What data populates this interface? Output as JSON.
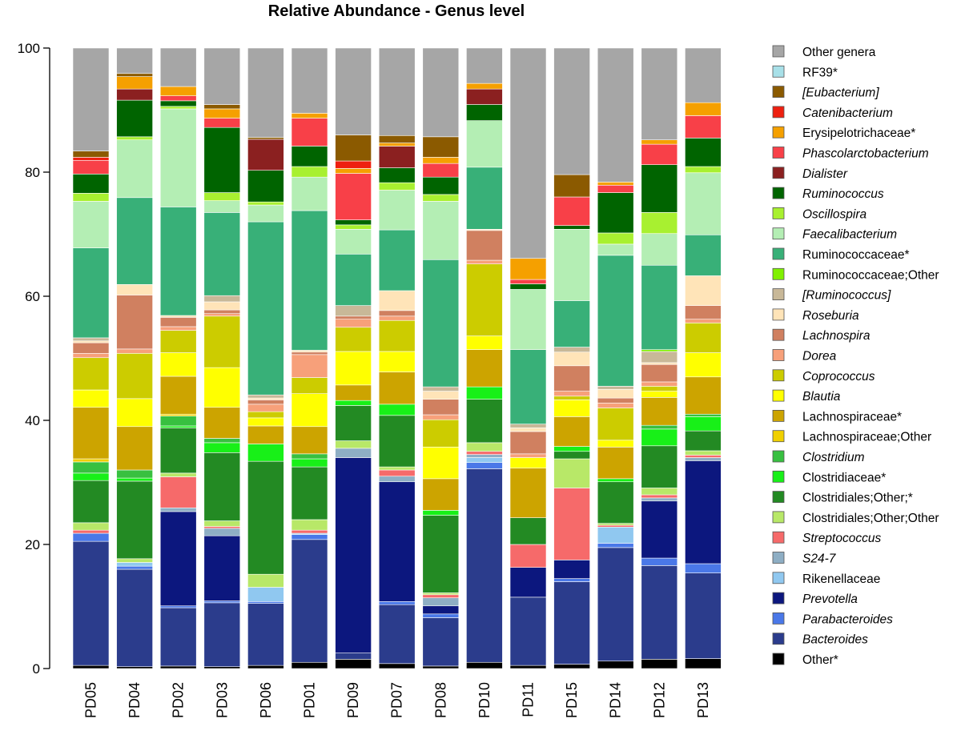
{
  "chart_data": {
    "type": "bar",
    "stacked": true,
    "title": "Relative Abundance - Genus level",
    "xlabel": "",
    "ylabel": "",
    "ylim": [
      0,
      100
    ],
    "yticks": [
      "0",
      "20",
      "40",
      "60",
      "80",
      "100"
    ],
    "legend_position": "right",
    "categories": [
      "PD05",
      "PD04",
      "PD02",
      "PD03",
      "PD06",
      "PD01",
      "PD09",
      "PD07",
      "PD08",
      "PD10",
      "PD11",
      "PD15",
      "PD14",
      "PD12",
      "PD13"
    ],
    "series": [
      {
        "name": "Other*",
        "italic": false,
        "color": "#000000",
        "values": [
          0.5,
          0.3,
          0.4,
          0.3,
          0.5,
          1.0,
          1.5,
          0.8,
          0.4,
          1.0,
          0.5,
          0.7,
          1.2,
          1.5,
          1.6
        ]
      },
      {
        "name": "Bacteroides",
        "italic": true,
        "color": "#2b3c8c",
        "values": [
          20.0,
          15.7,
          9.4,
          10.3,
          10.0,
          19.8,
          1.0,
          9.5,
          7.8,
          31.2,
          11.0,
          13.3,
          18.3,
          15.1,
          13.8
        ]
      },
      {
        "name": "Parabacteroides",
        "italic": true,
        "color": "#4a78e8",
        "values": [
          1.3,
          0.5,
          0.3,
          0.3,
          0.3,
          0.8,
          0.0,
          0.5,
          0.6,
          1.0,
          0.0,
          0.5,
          0.7,
          1.2,
          1.5
        ]
      },
      {
        "name": "Prevotella",
        "italic": true,
        "color": "#0c177e",
        "values": [
          0.0,
          0.0,
          15.2,
          10.5,
          0.0,
          0.0,
          31.5,
          19.3,
          1.3,
          0.0,
          4.8,
          3.0,
          0.0,
          9.2,
          16.6
        ]
      },
      {
        "name": "Rikenellaceae",
        "italic": false,
        "color": "#90c8f0",
        "values": [
          0.0,
          0.6,
          0.0,
          0.0,
          2.3,
          0.2,
          0.0,
          0.0,
          0.0,
          0.8,
          0.0,
          0.0,
          2.6,
          0.0,
          0.0
        ]
      },
      {
        "name": "S24-7",
        "italic": true,
        "color": "#8eaec4",
        "values": [
          0.0,
          0.0,
          0.6,
          1.2,
          0.0,
          0.0,
          1.5,
          0.9,
          1.3,
          0.5,
          0.0,
          0.0,
          0.0,
          0.5,
          0.5
        ]
      },
      {
        "name": "Streptococcus",
        "italic": true,
        "color": "#f66a6a",
        "values": [
          0.5,
          0.0,
          5.0,
          0.3,
          0.0,
          0.5,
          0.0,
          1.0,
          0.5,
          0.5,
          3.7,
          11.6,
          0.3,
          0.5,
          0.4
        ]
      },
      {
        "name": "Clostridiales;Other;Other",
        "italic": false,
        "color": "#b8e868",
        "values": [
          1.2,
          0.6,
          0.6,
          0.9,
          2.1,
          1.7,
          1.2,
          0.5,
          0.3,
          1.4,
          0.0,
          4.7,
          0.3,
          1.1,
          0.7
        ]
      },
      {
        "name": "Clostridiales;Other;*",
        "italic": false,
        "color": "#238a23",
        "values": [
          6.8,
          12.5,
          7.3,
          11.0,
          18.2,
          8.5,
          5.7,
          8.3,
          12.5,
          7.0,
          4.3,
          1.2,
          6.7,
          6.8,
          3.2
        ]
      },
      {
        "name": "Clostridiaceae*",
        "italic": false,
        "color": "#18f018",
        "values": [
          1.2,
          0.5,
          0.3,
          1.6,
          2.8,
          1.3,
          0.8,
          1.8,
          0.8,
          2.0,
          0.0,
          0.8,
          0.5,
          2.7,
          2.3
        ]
      },
      {
        "name": "Clostridium",
        "italic": true,
        "color": "#38c040",
        "values": [
          1.8,
          1.3,
          1.6,
          0.7,
          0.0,
          0.8,
          0.0,
          0.0,
          0.0,
          0.0,
          0.0,
          0.0,
          0.0,
          0.6,
          0.4
        ]
      },
      {
        "name": "Lachnospiraceae;Other",
        "italic": false,
        "color": "#f0d000",
        "values": [
          0.5,
          0.0,
          0.3,
          0.0,
          0.0,
          0.0,
          0.0,
          0.0,
          0.0,
          0.0,
          0.0,
          0.0,
          0.0,
          0.0,
          0.0
        ]
      },
      {
        "name": "Lachnospiraceae*",
        "italic": false,
        "color": "#cca400",
        "values": [
          8.3,
          7.0,
          6.1,
          5.0,
          2.9,
          4.4,
          2.5,
          5.2,
          5.1,
          6.0,
          8.0,
          4.8,
          5.1,
          4.5,
          6.0
        ]
      },
      {
        "name": "Blautia",
        "italic": true,
        "color": "#ffff00",
        "values": [
          2.8,
          4.5,
          3.8,
          6.4,
          1.3,
          5.3,
          5.4,
          3.3,
          5.1,
          2.2,
          1.7,
          2.7,
          1.1,
          1.0,
          3.9
        ]
      },
      {
        "name": "Coprococcus",
        "italic": true,
        "color": "#cccc00",
        "values": [
          5.2,
          7.3,
          3.6,
          8.3,
          1.0,
          2.6,
          3.9,
          5.0,
          4.4,
          11.6,
          0.0,
          0.6,
          5.2,
          0.8,
          4.8
        ]
      },
      {
        "name": "Dorea",
        "italic": true,
        "color": "#f7a07a",
        "values": [
          0.7,
          0.7,
          0.6,
          0.4,
          1.2,
          3.7,
          1.3,
          0.7,
          0.8,
          0.6,
          0.6,
          0.8,
          0.8,
          0.7,
          0.6
        ]
      },
      {
        "name": "Lachnospira",
        "italic": true,
        "color": "#d08060",
        "values": [
          1.7,
          8.7,
          1.5,
          0.6,
          0.7,
          0.4,
          0.5,
          0.9,
          2.5,
          4.8,
          3.6,
          4.1,
          0.8,
          2.8,
          2.2
        ]
      },
      {
        "name": "Roseburia",
        "italic": true,
        "color": "#ffe4b8",
        "values": [
          0.3,
          1.7,
          0.3,
          1.3,
          0.3,
          0.3,
          0.0,
          3.2,
          1.3,
          0.2,
          0.6,
          2.2,
          1.4,
          0.3,
          4.8
        ]
      },
      {
        "name": "[Ruminococcus]",
        "italic": true,
        "color": "#c8b898",
        "values": [
          0.5,
          0.0,
          0.0,
          1.0,
          0.5,
          0.0,
          1.7,
          0.0,
          0.7,
          0.0,
          0.6,
          0.8,
          0.5,
          1.8,
          0.0
        ]
      },
      {
        "name": "Ruminococcaceae;Other",
        "italic": false,
        "color": "#80f000",
        "values": [
          0.0,
          0.0,
          0.0,
          0.0,
          0.0,
          0.0,
          0.0,
          0.0,
          0.0,
          0.0,
          0.0,
          0.0,
          0.0,
          0.3,
          0.0
        ]
      },
      {
        "name": "Ruminococcaceae*",
        "italic": false,
        "color": "#38b078",
        "values": [
          14.5,
          14.0,
          17.5,
          13.4,
          27.9,
          22.5,
          8.3,
          9.8,
          20.5,
          10.0,
          12.0,
          7.5,
          21.1,
          13.6,
          6.6
        ]
      },
      {
        "name": "Faecalibacterium",
        "italic": true,
        "color": "#b4eeb4",
        "values": [
          7.5,
          9.3,
          15.8,
          1.9,
          2.7,
          5.4,
          4.0,
          6.4,
          9.4,
          7.5,
          9.7,
          11.5,
          1.8,
          5.1,
          10.0
        ]
      },
      {
        "name": "Oscillospira",
        "italic": true,
        "color": "#a8f030",
        "values": [
          1.3,
          0.5,
          0.4,
          1.3,
          0.5,
          1.7,
          0.7,
          1.2,
          1.1,
          0.0,
          0.0,
          0.0,
          1.8,
          3.4,
          1.0
        ]
      },
      {
        "name": "Ruminococcus",
        "italic": true,
        "color": "#006400",
        "values": [
          3.1,
          5.9,
          0.9,
          10.5,
          5.1,
          3.3,
          0.8,
          2.4,
          2.8,
          2.6,
          0.9,
          0.6,
          6.5,
          7.7,
          4.6
        ]
      },
      {
        "name": "Dialister",
        "italic": true,
        "color": "#8b2020",
        "values": [
          0.0,
          1.8,
          0.0,
          0.0,
          5.0,
          0.0,
          0.0,
          3.5,
          0.0,
          2.5,
          0.0,
          0.0,
          0.0,
          0.0,
          0.0
        ]
      },
      {
        "name": "Phascolarctobacterium",
        "italic": true,
        "color": "#f84048",
        "values": [
          2.2,
          0.0,
          0.8,
          1.5,
          0.0,
          4.5,
          7.5,
          0.0,
          2.2,
          0.0,
          0.7,
          4.6,
          1.2,
          3.3,
          3.6
        ]
      },
      {
        "name": "Erysipelotrichaceae*",
        "italic": false,
        "color": "#f5a000",
        "values": [
          0.0,
          2.0,
          1.5,
          1.5,
          0.0,
          0.8,
          0.8,
          0.5,
          1.0,
          0.9,
          3.4,
          0.0,
          0.5,
          0.7,
          2.1
        ]
      },
      {
        "name": "Catenibacterium",
        "italic": true,
        "color": "#ee2010",
        "values": [
          0.5,
          0.0,
          0.0,
          0.0,
          0.0,
          0.0,
          1.2,
          0.0,
          0.0,
          0.0,
          0.0,
          0.0,
          0.0,
          0.0,
          0.0
        ]
      },
      {
        "name": "[Eubacterium]",
        "italic": true,
        "color": "#8b5a00",
        "values": [
          1.0,
          0.5,
          0.0,
          0.7,
          0.3,
          0.0,
          4.2,
          1.2,
          3.3,
          0.0,
          0.0,
          3.6,
          0.0,
          0.0,
          0.0
        ]
      },
      {
        "name": "RF39*",
        "italic": false,
        "color": "#a8e0e8",
        "values": [
          0.0,
          0.0,
          0.0,
          0.0,
          0.0,
          0.0,
          0.0,
          0.0,
          0.0,
          0.0,
          0.0,
          0.0,
          0.0,
          0.0,
          0.0
        ]
      },
      {
        "name": "Other genera",
        "italic": false,
        "color": "#a6a6a6",
        "values": [
          15.1,
          4.2,
          5.5,
          9.1,
          14.5,
          9.5,
          13.2,
          12.8,
          14.5,
          5.8,
          30.5,
          19.1,
          20.7,
          15.6,
          7.9
        ]
      }
    ]
  }
}
